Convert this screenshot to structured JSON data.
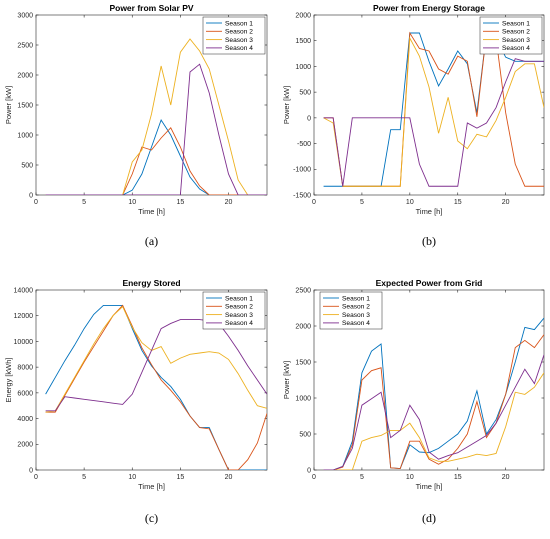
{
  "colors": [
    "#0072BD",
    "#D95319",
    "#EDB120",
    "#7E2F8E"
  ],
  "chart_data": [
    {
      "type": "line",
      "title": "Power from Solar PV",
      "xlabel": "Time [h]",
      "ylabel": "Power [kW]",
      "caption": "(a)",
      "xlim": [
        0,
        24
      ],
      "ylim": [
        0,
        3000
      ],
      "xticks": [
        0,
        5,
        10,
        15,
        20
      ],
      "yticks": [
        0,
        500,
        1000,
        1500,
        2000,
        2500,
        3000
      ],
      "legend": "top-right",
      "x": [
        1,
        2,
        3,
        4,
        5,
        6,
        7,
        8,
        9,
        10,
        11,
        12,
        13,
        14,
        15,
        16,
        17,
        18,
        19,
        20,
        21,
        22,
        23,
        24
      ],
      "series": [
        {
          "name": "Season 1",
          "values": [
            0,
            0,
            0,
            0,
            0,
            0,
            0,
            0,
            0,
            80,
            350,
            800,
            1250,
            1000,
            650,
            300,
            100,
            0,
            0,
            0,
            0,
            0,
            0,
            0
          ]
        },
        {
          "name": "Season 2",
          "values": [
            0,
            0,
            0,
            0,
            0,
            0,
            0,
            0,
            0,
            350,
            800,
            750,
            950,
            1120,
            800,
            400,
            150,
            0,
            0,
            0,
            0,
            0,
            0,
            0
          ]
        },
        {
          "name": "Season 3",
          "values": [
            0,
            0,
            0,
            0,
            0,
            0,
            0,
            0,
            0,
            550,
            750,
            1350,
            2150,
            1500,
            2380,
            2600,
            2400,
            2100,
            1500,
            900,
            250,
            0,
            0,
            0
          ]
        },
        {
          "name": "Season 4",
          "values": [
            0,
            0,
            0,
            0,
            0,
            0,
            0,
            0,
            0,
            0,
            0,
            0,
            0,
            0,
            0,
            2050,
            2180,
            1700,
            1000,
            350,
            0,
            0,
            0,
            0
          ]
        }
      ]
    },
    {
      "type": "line",
      "title": "Power from Energy Storage",
      "xlabel": "Time [h]",
      "ylabel": "Power [kW]",
      "caption": "(b)",
      "xlim": [
        0,
        24
      ],
      "ylim": [
        -1500,
        2000
      ],
      "xticks": [
        0,
        5,
        10,
        15,
        20
      ],
      "yticks": [
        -1500,
        -1000,
        -500,
        0,
        500,
        1000,
        1500,
        2000
      ],
      "legend": "top-right",
      "x": [
        1,
        2,
        3,
        4,
        5,
        6,
        7,
        8,
        9,
        10,
        11,
        12,
        13,
        14,
        15,
        16,
        17,
        18,
        19,
        20,
        21,
        22,
        23,
        24
      ],
      "series": [
        {
          "name": "Season 1",
          "values": [
            -1330,
            -1330,
            -1330,
            -1330,
            -1330,
            -1330,
            -1330,
            -230,
            -230,
            1650,
            1650,
            1100,
            620,
            950,
            1300,
            1050,
            100,
            1650,
            1550,
            1180,
            1100,
            1100,
            1100,
            1100
          ]
        },
        {
          "name": "Season 2",
          "values": [
            0,
            0,
            -1330,
            -1330,
            -1330,
            -1330,
            -1330,
            -1330,
            -1330,
            1650,
            1350,
            1300,
            950,
            850,
            1200,
            1100,
            20,
            1650,
            1550,
            100,
            -900,
            -1330,
            -1330,
            -1330
          ]
        },
        {
          "name": "Season 3",
          "values": [
            0,
            -100,
            -1330,
            -1330,
            -1330,
            -1330,
            -1330,
            -1330,
            -1330,
            1550,
            1200,
            600,
            -300,
            400,
            -450,
            -600,
            -320,
            -370,
            -50,
            400,
            900,
            1050,
            1050,
            200
          ]
        },
        {
          "name": "Season 4",
          "values": [
            0,
            0,
            -1330,
            0,
            0,
            0,
            0,
            0,
            0,
            0,
            -900,
            -1330,
            -1330,
            -1330,
            -1330,
            -100,
            -200,
            -100,
            200,
            700,
            1150,
            1100,
            1100,
            1100
          ]
        }
      ]
    },
    {
      "type": "line",
      "title": "Energy Stored",
      "xlabel": "Time [h]",
      "ylabel": "Energy [kWh]",
      "caption": "(c)",
      "xlim": [
        0,
        24
      ],
      "ylim": [
        0,
        14000
      ],
      "xticks": [
        0,
        5,
        10,
        15,
        20
      ],
      "yticks": [
        0,
        2000,
        4000,
        6000,
        8000,
        10000,
        12000,
        14000
      ],
      "legend": "top-right",
      "x": [
        1,
        2,
        3,
        4,
        5,
        6,
        7,
        8,
        9,
        10,
        11,
        12,
        13,
        14,
        15,
        16,
        17,
        18,
        19,
        20,
        21,
        22,
        23,
        24
      ],
      "series": [
        {
          "name": "Season 1",
          "values": [
            5900,
            7200,
            8500,
            9700,
            11000,
            12100,
            12800,
            12800,
            12800,
            11000,
            9300,
            8100,
            7200,
            6500,
            5500,
            4200,
            3300,
            3300,
            1600,
            0,
            0,
            0,
            0,
            0
          ]
        },
        {
          "name": "Season 2",
          "values": [
            4500,
            4500,
            5800,
            7100,
            8400,
            9600,
            10800,
            12000,
            12800,
            11200,
            9500,
            8200,
            7000,
            6200,
            5300,
            4200,
            3300,
            3200,
            1600,
            0,
            0,
            800,
            2100,
            4400
          ]
        },
        {
          "name": "Season 3",
          "values": [
            4500,
            4600,
            5900,
            7200,
            8500,
            9800,
            11000,
            12000,
            12700,
            11100,
            9900,
            9300,
            9600,
            8300,
            8700,
            9000,
            9100,
            9200,
            9100,
            8600,
            7500,
            6200,
            5000,
            4800
          ]
        },
        {
          "name": "Season 4",
          "values": [
            4600,
            4600,
            5700,
            5600,
            5500,
            5400,
            5300,
            5200,
            5100,
            5900,
            7600,
            9300,
            11000,
            11400,
            11700,
            11700,
            11700,
            11600,
            11400,
            10400,
            9300,
            8100,
            7000,
            5900
          ]
        }
      ]
    },
    {
      "type": "line",
      "title": "Expected Power from Grid",
      "xlabel": "Time [h]",
      "ylabel": "Power [kW]",
      "caption": "(d)",
      "xlim": [
        0,
        24
      ],
      "ylim": [
        0,
        2500
      ],
      "xticks": [
        0,
        5,
        10,
        15,
        20
      ],
      "yticks": [
        0,
        500,
        1000,
        1500,
        2000,
        2500
      ],
      "legend": "top-left",
      "x": [
        1,
        2,
        3,
        4,
        5,
        6,
        7,
        8,
        9,
        10,
        11,
        12,
        13,
        14,
        15,
        16,
        17,
        18,
        19,
        20,
        21,
        22,
        23,
        24
      ],
      "series": [
        {
          "name": "Season 1",
          "values": [
            0,
            0,
            50,
            400,
            1350,
            1650,
            1750,
            30,
            20,
            350,
            250,
            240,
            300,
            400,
            500,
            680,
            1100,
            500,
            700,
            1050,
            1500,
            1980,
            1950,
            2110
          ]
        },
        {
          "name": "Season 2",
          "values": [
            0,
            0,
            40,
            350,
            1250,
            1380,
            1420,
            30,
            20,
            400,
            400,
            150,
            80,
            150,
            300,
            500,
            950,
            450,
            650,
            1050,
            1700,
            1800,
            1700,
            1880
          ]
        },
        {
          "name": "Season 3",
          "values": [
            0,
            0,
            0,
            0,
            400,
            450,
            480,
            550,
            550,
            650,
            450,
            170,
            120,
            120,
            150,
            180,
            220,
            200,
            230,
            600,
            1080,
            1050,
            1150,
            1350
          ]
        },
        {
          "name": "Season 4",
          "values": [
            0,
            0,
            50,
            300,
            900,
            990,
            1080,
            450,
            550,
            900,
            700,
            250,
            150,
            200,
            240,
            320,
            400,
            480,
            650,
            900,
            1150,
            1400,
            1200,
            1600
          ]
        }
      ]
    }
  ]
}
